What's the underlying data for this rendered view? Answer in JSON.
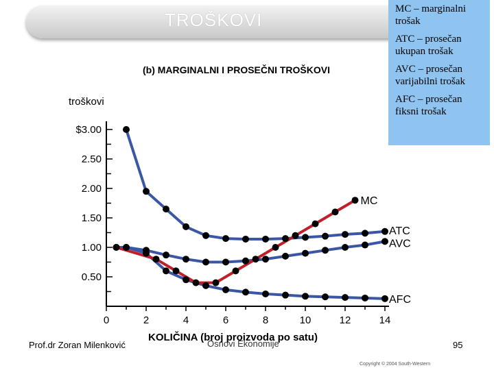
{
  "slide_title": "TROŠKOVI",
  "legend": [
    {
      "text": "MC – marginalni trošak"
    },
    {
      "text": "ATC – prosečan ukupan trošak"
    },
    {
      "text": "AVC – prosečan varijabilni trošak"
    },
    {
      "text": "AFC – prosečan fiksni trošak"
    }
  ],
  "footer": {
    "author": "Prof.dr Zoran Milenković",
    "course": "Osnovi Ekonomije",
    "page": "95",
    "copyright": "Copyright © 2004 South-Western"
  },
  "chart_data": {
    "type": "line",
    "title": "(b) MARGINALNI I PROSEČNI TROŠKOVI",
    "xlabel": "KOLIČINA (broj proizvoda po satu)",
    "ylabel": "troškovi",
    "xlim": [
      0,
      14
    ],
    "ylim": [
      0,
      3.0
    ],
    "x_ticks": [
      0,
      2,
      4,
      6,
      8,
      10,
      12,
      14
    ],
    "x_tick_labels": [
      "0",
      "2",
      "4",
      "6",
      "8",
      "10",
      "12",
      "14"
    ],
    "y_ticks": [
      0.5,
      1.0,
      1.5,
      2.0,
      2.5,
      3.0
    ],
    "y_tick_labels": [
      "0.50",
      "1.00",
      "1.50",
      "2.00",
      "2.50",
      "$3.00"
    ],
    "series": [
      {
        "name": "MC",
        "color": "#c0202a",
        "x": [
          0.5,
          2.5,
          3.5,
          4.5,
          5.5,
          6.5,
          7.5,
          8.5,
          9.5,
          10.5,
          11.5,
          12.5
        ],
        "y": [
          1.0,
          0.8,
          0.6,
          0.4,
          0.4,
          0.6,
          0.8,
          1.0,
          1.2,
          1.4,
          1.6,
          1.8
        ]
      },
      {
        "name": "ATC",
        "color": "#3a56a5",
        "x": [
          1,
          2,
          3,
          4,
          5,
          6,
          7,
          8,
          9,
          10,
          11,
          12,
          13,
          14
        ],
        "y": [
          3.0,
          1.95,
          1.65,
          1.35,
          1.2,
          1.15,
          1.14,
          1.14,
          1.15,
          1.17,
          1.19,
          1.22,
          1.24,
          1.27
        ]
      },
      {
        "name": "AVC",
        "color": "#3a56a5",
        "x": [
          0.5,
          1,
          2,
          3,
          4,
          5,
          6,
          7,
          8,
          9,
          10,
          11,
          12,
          13,
          14
        ],
        "y": [
          1.0,
          1.0,
          0.95,
          0.87,
          0.8,
          0.75,
          0.75,
          0.77,
          0.8,
          0.85,
          0.9,
          0.95,
          1.0,
          1.04,
          1.1
        ]
      },
      {
        "name": "AFC",
        "color": "#3a56a5",
        "x": [
          1,
          2,
          3,
          4,
          5,
          6,
          7,
          8,
          9,
          10,
          11,
          12,
          13,
          14
        ],
        "y": [
          1.0,
          0.9,
          0.6,
          0.45,
          0.35,
          0.28,
          0.24,
          0.21,
          0.19,
          0.17,
          0.16,
          0.15,
          0.14,
          0.13
        ]
      }
    ],
    "series_labels": [
      "MC",
      "ATC",
      "AVC",
      "AFC"
    ]
  }
}
